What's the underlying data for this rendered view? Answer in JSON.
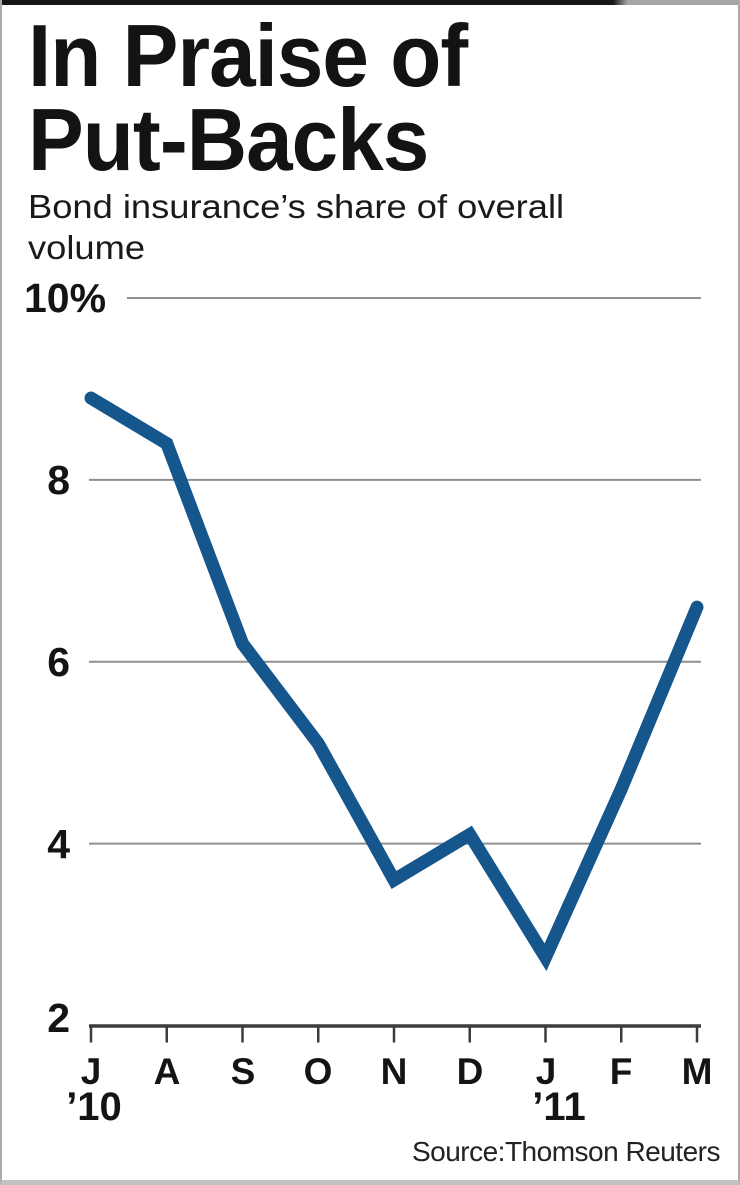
{
  "title": {
    "line1": "In Praise of",
    "line2": "Put-Backs"
  },
  "subtitle": "Bond insurance’s share of overall volume",
  "source": "Source:Thomson Reuters",
  "chart_data": {
    "type": "line",
    "title": "In Praise of Put-Backs",
    "subtitle": "Bond insurance’s share of overall volume",
    "categories": [
      "J",
      "A",
      "S",
      "O",
      "N",
      "D",
      "J",
      "F",
      "M"
    ],
    "year_labels": [
      {
        "label": "’10",
        "index": 0,
        "dx": 3
      },
      {
        "label": "’11",
        "index": 6,
        "dx": 13
      }
    ],
    "series": [
      {
        "name": "Bond insurance share of overall volume (%)",
        "values": [
          8.9,
          8.4,
          6.2,
          5.1,
          3.6,
          4.1,
          2.75,
          4.6,
          6.6
        ]
      }
    ],
    "ylim": [
      2,
      10
    ],
    "yticks": [
      2,
      4,
      6,
      8,
      10
    ],
    "ytick_labels": [
      "2",
      "4",
      "6",
      "8",
      "10%"
    ],
    "grid": true,
    "legend": "none",
    "line_color": "#15568c",
    "grid_color": "#8f8f8f",
    "axis_color": "#3c3c3c",
    "source": "Source:Thomson Reuters"
  }
}
